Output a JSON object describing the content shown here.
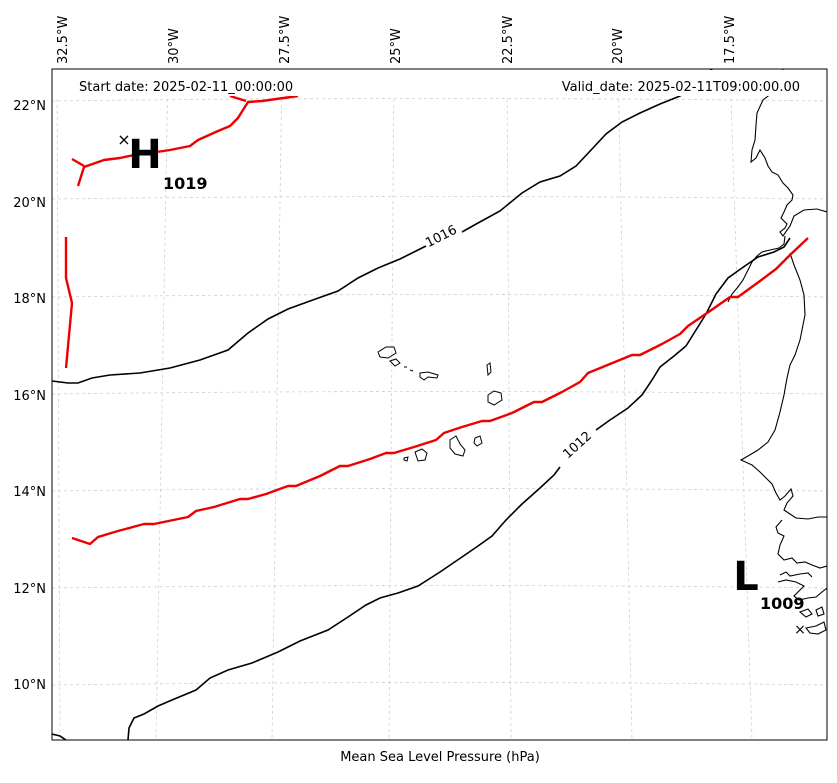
{
  "header": {
    "start_date": "Start date: 2025-02-11_00:00:00",
    "valid_date": "Valid_date: 2025-02-11T09:00:00.00"
  },
  "footer": {
    "caption": "Mean Sea Level Pressure (hPa)"
  },
  "axes": {
    "lon_labels": [
      "32.5°W",
      "30°W",
      "27.5°W",
      "25°W",
      "22.5°W",
      "20°W",
      "17.5°W"
    ],
    "lat_labels": [
      "22°N",
      "20°N",
      "18°N",
      "16°N",
      "14°N",
      "12°N",
      "10°N"
    ]
  },
  "contours": {
    "label_1016": "1016",
    "label_1012": "1012"
  },
  "high": {
    "letter": "H",
    "value": "1019",
    "marker": "×"
  },
  "low": {
    "letter": "L",
    "value": "1009",
    "marker": "×"
  },
  "colors": {
    "contour": "#000000",
    "front": "#ee0000",
    "grid": "#cccccc",
    "coast": "#000000"
  }
}
